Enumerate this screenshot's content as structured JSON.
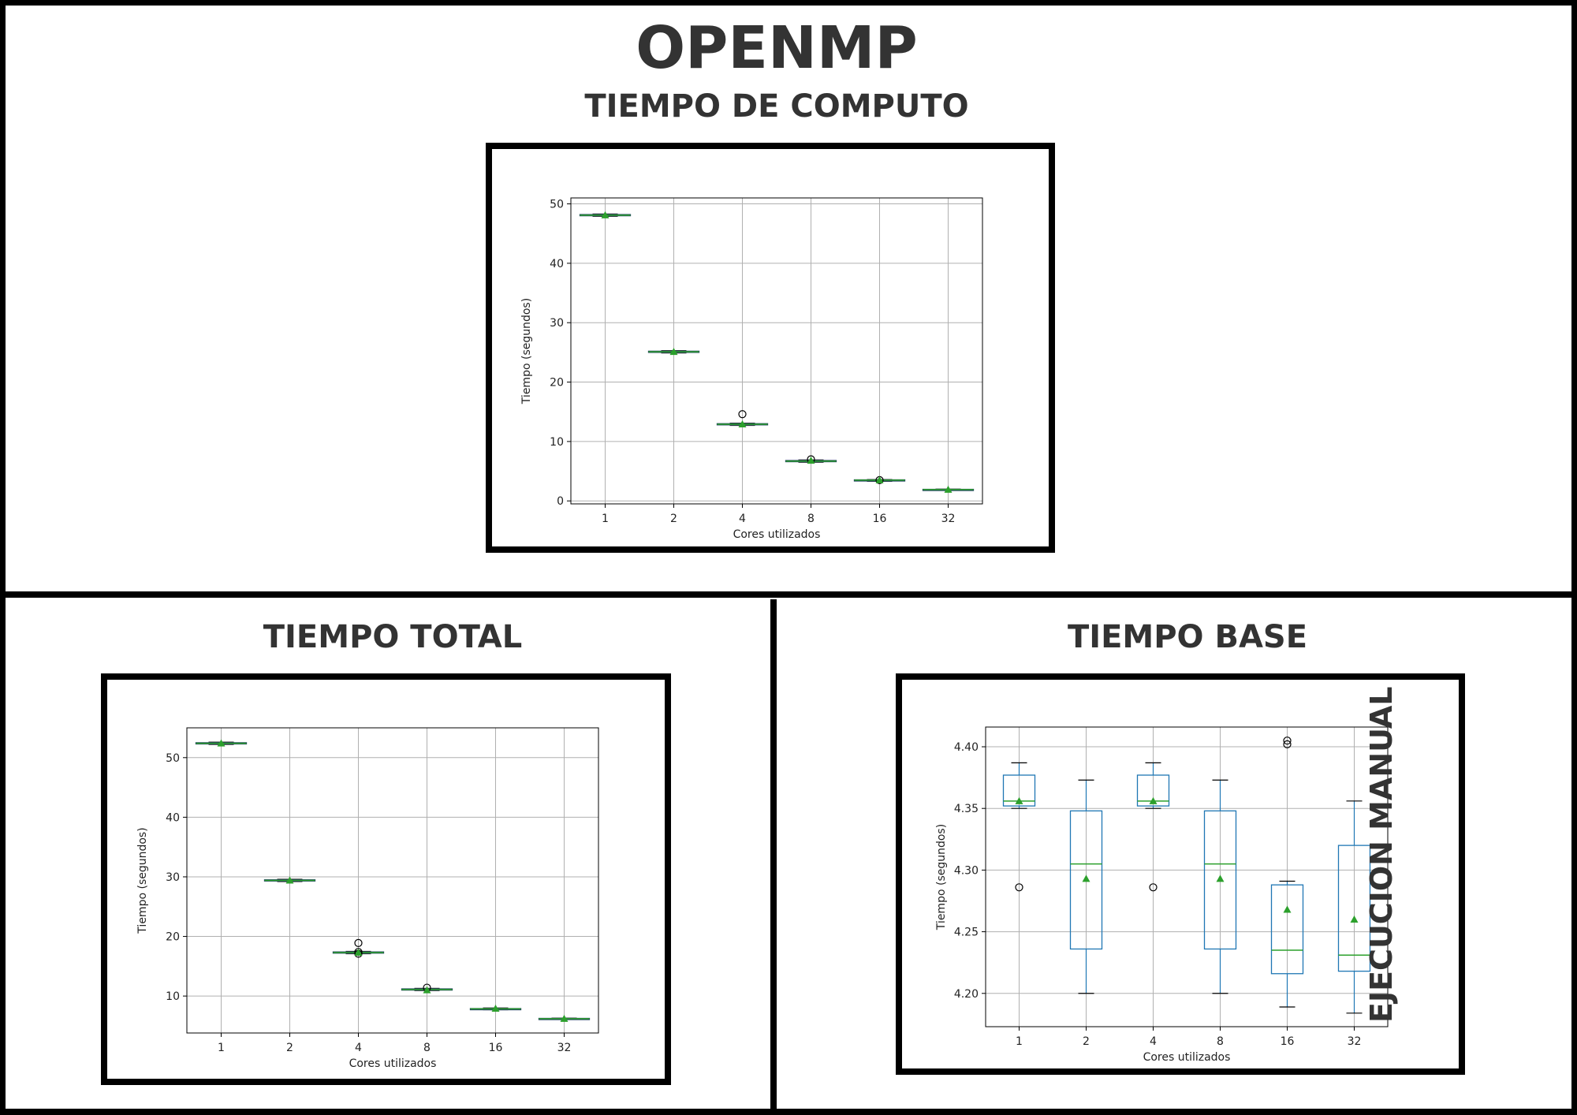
{
  "page": {
    "main_title": "OPENMP",
    "side_label": "EJECUCION MANUAL",
    "colors": {
      "heading": "#333333",
      "box": "#1f77b4",
      "median": "#2ca02c",
      "mean": "#2ca02c"
    }
  },
  "panels": {
    "computo": {
      "title": "TIEMPO DE COMPUTO"
    },
    "total": {
      "title": "TIEMPO TOTAL"
    },
    "base": {
      "title": "TIEMPO BASE"
    }
  },
  "chart_data": [
    {
      "type": "box",
      "panel": "TIEMPO DE COMPUTO",
      "categories": [
        "1",
        "2",
        "4",
        "8",
        "16",
        "32"
      ],
      "xlabel": "Cores utilizados",
      "ylabel": "Tiempo (segundos)",
      "ylim": [
        -0.5,
        51
      ],
      "yticks": [
        0,
        10,
        20,
        30,
        40,
        50
      ],
      "grid": true,
      "boxes": [
        {
          "whislo": 47.9,
          "q1": 48.0,
          "med": 48.1,
          "q3": 48.2,
          "whishi": 48.3,
          "mean": 48.1,
          "fliers": []
        },
        {
          "whislo": 24.9,
          "q1": 25.0,
          "med": 25.1,
          "q3": 25.2,
          "whishi": 25.3,
          "mean": 25.1,
          "fliers": []
        },
        {
          "whislo": 12.7,
          "q1": 12.8,
          "med": 12.9,
          "q3": 13.0,
          "whishi": 13.1,
          "mean": 12.9,
          "fliers": [
            14.6
          ]
        },
        {
          "whislo": 6.5,
          "q1": 6.6,
          "med": 6.7,
          "q3": 6.8,
          "whishi": 6.9,
          "mean": 6.8,
          "fliers": [
            7.0
          ]
        },
        {
          "whislo": 3.3,
          "q1": 3.4,
          "med": 3.5,
          "q3": 3.55,
          "whishi": 3.6,
          "mean": 3.5,
          "fliers": [
            3.5
          ]
        },
        {
          "whislo": 1.8,
          "q1": 1.85,
          "med": 1.9,
          "q3": 1.95,
          "whishi": 2.0,
          "mean": 1.9,
          "fliers": []
        }
      ]
    },
    {
      "type": "box",
      "panel": "TIEMPO TOTAL",
      "categories": [
        "1",
        "2",
        "4",
        "8",
        "16",
        "32"
      ],
      "xlabel": "Cores utilizados",
      "ylabel": "Tiempo (segundos)",
      "ylim": [
        3.8,
        55
      ],
      "yticks": [
        10,
        20,
        30,
        40,
        50
      ],
      "grid": true,
      "boxes": [
        {
          "whislo": 52.2,
          "q1": 52.3,
          "med": 52.4,
          "q3": 52.5,
          "whishi": 52.6,
          "mean": 52.4,
          "fliers": []
        },
        {
          "whislo": 29.2,
          "q1": 29.3,
          "med": 29.4,
          "q3": 29.5,
          "whishi": 29.6,
          "mean": 29.4,
          "fliers": []
        },
        {
          "whislo": 17.1,
          "q1": 17.2,
          "med": 17.3,
          "q3": 17.4,
          "whishi": 17.5,
          "mean": 17.3,
          "fliers": [
            18.9,
            17.4,
            17.1
          ]
        },
        {
          "whislo": 10.9,
          "q1": 11.0,
          "med": 11.1,
          "q3": 11.2,
          "whishi": 11.3,
          "mean": 11.0,
          "fliers": [
            11.4
          ]
        },
        {
          "whislo": 7.7,
          "q1": 7.8,
          "med": 7.85,
          "q3": 7.9,
          "whishi": 8.0,
          "mean": 7.9,
          "fliers": []
        },
        {
          "whislo": 6.1,
          "q1": 6.15,
          "med": 6.2,
          "q3": 6.25,
          "whishi": 6.3,
          "mean": 6.2,
          "fliers": []
        }
      ]
    },
    {
      "type": "box",
      "panel": "TIEMPO BASE",
      "categories": [
        "1",
        "2",
        "4",
        "8",
        "16",
        "32"
      ],
      "xlabel": "Cores utilizados",
      "ylabel": "Tiempo (segundos)",
      "ylim": [
        4.173,
        4.416
      ],
      "yticks": [
        "4.20",
        "4.25",
        "4.30",
        "4.35",
        "4.40"
      ],
      "grid": true,
      "boxes": [
        {
          "whislo": 4.35,
          "q1": 4.352,
          "med": 4.356,
          "q3": 4.377,
          "whishi": 4.387,
          "mean": 4.356,
          "fliers": [
            4.286
          ]
        },
        {
          "whislo": 4.2,
          "q1": 4.236,
          "med": 4.305,
          "q3": 4.348,
          "whishi": 4.373,
          "mean": 4.293,
          "fliers": []
        },
        {
          "whislo": 4.35,
          "q1": 4.352,
          "med": 4.356,
          "q3": 4.377,
          "whishi": 4.387,
          "mean": 4.356,
          "fliers": [
            4.286
          ]
        },
        {
          "whislo": 4.2,
          "q1": 4.236,
          "med": 4.305,
          "q3": 4.348,
          "whishi": 4.373,
          "mean": 4.293,
          "fliers": []
        },
        {
          "whislo": 4.189,
          "q1": 4.216,
          "med": 4.235,
          "q3": 4.288,
          "whishi": 4.291,
          "mean": 4.268,
          "fliers": [
            4.402,
            4.405
          ]
        },
        {
          "whislo": 4.184,
          "q1": 4.218,
          "med": 4.231,
          "q3": 4.32,
          "whishi": 4.356,
          "mean": 4.26,
          "fliers": []
        }
      ]
    }
  ]
}
